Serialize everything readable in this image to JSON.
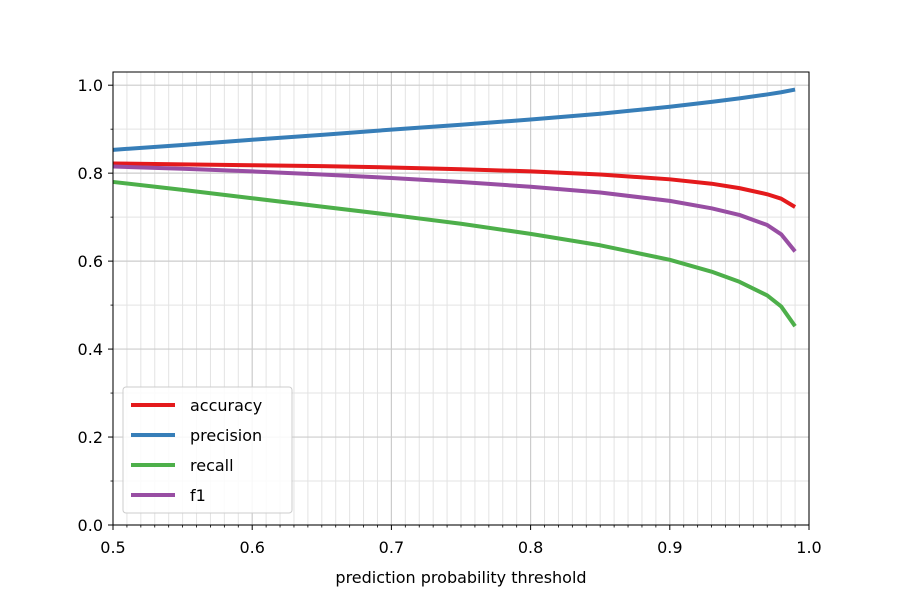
{
  "chart_data": {
    "type": "line",
    "title": "",
    "xlabel": "prediction probability threshold",
    "ylabel": "",
    "xlim": [
      0.5,
      1.0
    ],
    "ylim": [
      0.0,
      1.03
    ],
    "xticks": [
      "0.5",
      "0.6",
      "0.7",
      "0.8",
      "0.9",
      "1.0"
    ],
    "yticks": [
      "0.0",
      "0.2",
      "0.4",
      "0.6",
      "0.8",
      "1.0"
    ],
    "grid": "major and minor",
    "legend_position": "lower-left",
    "series": [
      {
        "name": "accuracy",
        "color": "#e41a1c",
        "x": [
          0.5,
          0.55,
          0.6,
          0.65,
          0.7,
          0.75,
          0.8,
          0.85,
          0.9,
          0.93,
          0.95,
          0.97,
          0.98,
          0.99
        ],
        "y": [
          0.822,
          0.82,
          0.818,
          0.816,
          0.813,
          0.809,
          0.804,
          0.797,
          0.786,
          0.776,
          0.766,
          0.752,
          0.742,
          0.723
        ]
      },
      {
        "name": "precision",
        "color": "#377eb8",
        "x": [
          0.5,
          0.55,
          0.6,
          0.65,
          0.7,
          0.75,
          0.8,
          0.85,
          0.9,
          0.93,
          0.95,
          0.97,
          0.98,
          0.99
        ],
        "y": [
          0.853,
          0.864,
          0.876,
          0.887,
          0.899,
          0.91,
          0.922,
          0.935,
          0.951,
          0.962,
          0.97,
          0.979,
          0.984,
          0.99
        ]
      },
      {
        "name": "recall",
        "color": "#4daf4a",
        "x": [
          0.5,
          0.55,
          0.6,
          0.65,
          0.7,
          0.75,
          0.8,
          0.85,
          0.9,
          0.93,
          0.95,
          0.97,
          0.98,
          0.99
        ],
        "y": [
          0.78,
          0.762,
          0.743,
          0.724,
          0.705,
          0.685,
          0.662,
          0.636,
          0.603,
          0.576,
          0.553,
          0.522,
          0.497,
          0.452
        ]
      },
      {
        "name": "f1",
        "color": "#984ea3",
        "x": [
          0.5,
          0.55,
          0.6,
          0.65,
          0.7,
          0.75,
          0.8,
          0.85,
          0.9,
          0.93,
          0.95,
          0.97,
          0.98,
          0.99
        ],
        "y": [
          0.815,
          0.81,
          0.804,
          0.797,
          0.789,
          0.78,
          0.769,
          0.756,
          0.737,
          0.72,
          0.705,
          0.682,
          0.661,
          0.622
        ]
      }
    ]
  }
}
